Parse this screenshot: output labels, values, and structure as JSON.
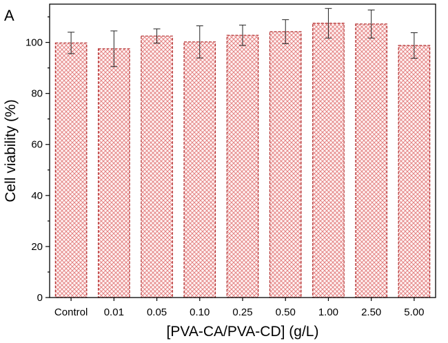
{
  "panel_label": "A",
  "colors": {
    "bar_fill": "#e88c8c",
    "bar_edge": "#b02a2a",
    "bar_bg": "#fff3f3"
  },
  "chart_data": {
    "type": "bar",
    "title": "",
    "xlabel": "[PVA-CA/PVA-CD] (g/L)",
    "ylabel": "Cell viability (%)",
    "ylim": [
      0,
      115
    ],
    "yticks": [
      0,
      20,
      40,
      60,
      80,
      100
    ],
    "categories": [
      "Control",
      "0.01",
      "0.05",
      "0.10",
      "0.25",
      "0.50",
      "1.00",
      "2.50",
      "5.00"
    ],
    "values": [
      99.8,
      97.5,
      102.5,
      100.2,
      102.8,
      104.2,
      107.5,
      107.2,
      98.8
    ],
    "errors": [
      4.2,
      7.0,
      2.8,
      6.3,
      4.0,
      4.7,
      5.8,
      5.5,
      5.0
    ],
    "grid": false,
    "bar_pattern": "crosshatch"
  }
}
